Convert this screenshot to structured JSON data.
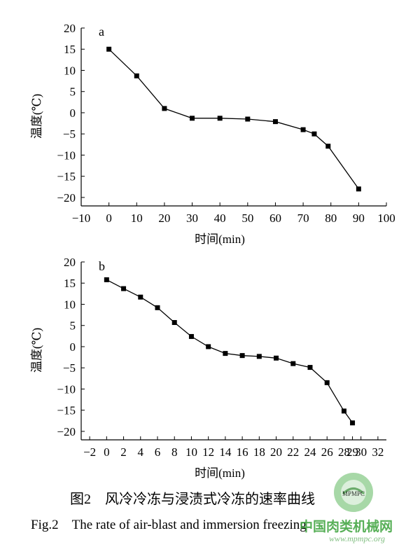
{
  "chart_data": [
    {
      "type": "line",
      "panel_label": "a",
      "xlabel": "时间(min)",
      "ylabel": "温度(℃)",
      "xlim": [
        -10,
        100
      ],
      "ylim": [
        -22,
        20
      ],
      "xticks": [
        -10,
        0,
        10,
        20,
        30,
        40,
        50,
        60,
        70,
        80,
        90,
        100
      ],
      "yticks": [
        20,
        15,
        10,
        5,
        0,
        -5,
        -10,
        -15,
        -20
      ],
      "x": [
        0,
        10,
        20,
        30,
        40,
        50,
        60,
        70,
        74,
        79,
        90
      ],
      "y": [
        15,
        8.7,
        1,
        -1.3,
        -1.3,
        -1.5,
        -2.1,
        -4,
        -5,
        -7.9,
        -18
      ]
    },
    {
      "type": "line",
      "panel_label": "b",
      "xlabel": "时间(min)",
      "ylabel": "温度(℃)",
      "xlim": [
        -3,
        33
      ],
      "ylim": [
        -22,
        20
      ],
      "xticks": [
        -2,
        0,
        2,
        4,
        6,
        8,
        10,
        12,
        14,
        16,
        18,
        20,
        22,
        24,
        26,
        28,
        29,
        30,
        32
      ],
      "yticks": [
        20,
        15,
        10,
        5,
        0,
        -5,
        -10,
        -15,
        -20
      ],
      "x": [
        0,
        2,
        4,
        6,
        8,
        10,
        12,
        14,
        16,
        18,
        20,
        22,
        24,
        26,
        28,
        29
      ],
      "y": [
        15.8,
        13.7,
        11.7,
        9.2,
        5.7,
        2.4,
        0,
        -1.6,
        -2.1,
        -2.3,
        -2.7,
        -4,
        -4.9,
        -8.5,
        -15.2,
        -18
      ]
    }
  ],
  "caption": {
    "cn": "图2　风冷冷冻与浸渍式冷冻的速率曲线",
    "en": "Fig.2　The rate of air-blast and immersion freezing"
  },
  "watermark": {
    "text": "中国肉类机械网",
    "url": "www.mpmpc.org",
    "logo_text": "MPMPC",
    "color": "#3aa23a"
  }
}
